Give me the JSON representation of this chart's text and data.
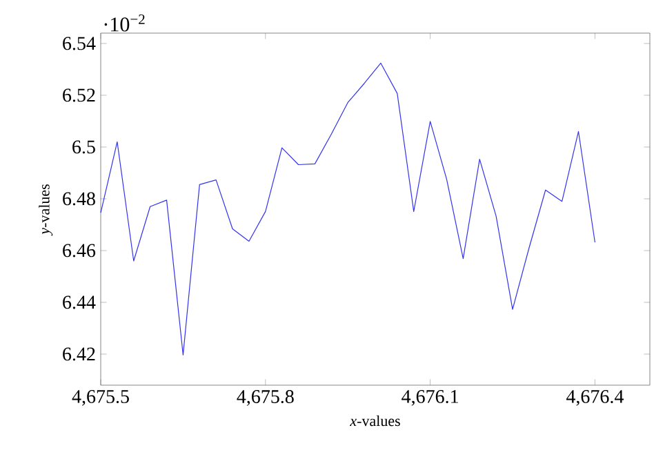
{
  "chart_data": {
    "type": "line",
    "xlabel": "*x*-values",
    "ylabel": "*y*-values",
    "annotations": [
      "·10$^{−2}$"
    ],
    "x": [
      4675.5,
      4675.53,
      4675.56,
      4675.59,
      4675.62,
      4675.65,
      4675.68,
      4675.71,
      4675.74,
      4675.77,
      4675.8,
      4675.83,
      4675.86,
      4675.89,
      4675.92,
      4675.95,
      4675.98,
      4676.01,
      4676.04,
      4676.07,
      4676.1,
      4676.13,
      4676.16,
      4676.19,
      4676.22,
      4676.25,
      4676.28,
      4676.31,
      4676.34,
      4676.37,
      4676.4
    ],
    "series": [
      {
        "color": "#3333ee",
        "values": [
          6.4746,
          6.502,
          6.456,
          6.477,
          6.4795,
          6.4197,
          6.4855,
          6.4873,
          6.4684,
          6.4636,
          6.4751,
          6.4997,
          6.4932,
          6.4935,
          6.505,
          6.5172,
          6.5246,
          6.5324,
          6.5207,
          6.4751,
          6.5099,
          6.4875,
          6.4569,
          6.4953,
          6.4733,
          6.4373,
          6.461,
          6.4834,
          6.479,
          6.506,
          6.4632
        ]
      }
    ],
    "xlim": [
      4675.5,
      4676.5
    ],
    "ylim": [
      6.408,
      6.544
    ],
    "xticks": [
      {
        "value": 4675.5,
        "label": "4,675.5"
      },
      {
        "value": 4675.8,
        "label": "4,675.8"
      },
      {
        "value": 4676.1,
        "label": "4,676.1"
      },
      {
        "value": 4676.4,
        "label": "4,676.4"
      }
    ],
    "yticks": [
      6.42,
      6.44,
      6.46,
      6.48,
      6.5,
      6.52,
      6.54
    ],
    "grid": false,
    "marker": "none",
    "line_style": "solid"
  }
}
